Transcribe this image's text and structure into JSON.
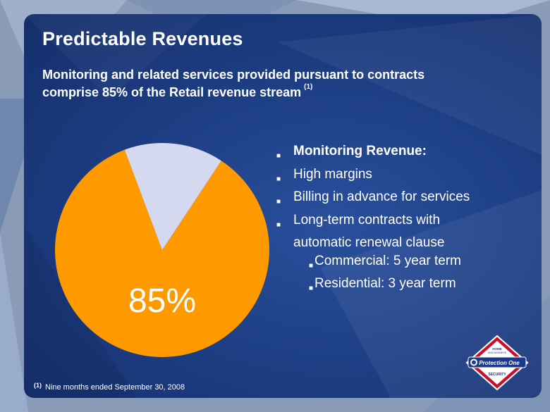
{
  "slide": {
    "title": "Predictable Revenues",
    "subtitle": "Monitoring and related services provided pursuant to contracts comprise 85% of the Retail revenue stream",
    "subtitle_footnote_mark": "(1)",
    "footnote_mark": "(1)",
    "footnote_text": "Nine months ended September 30, 2008"
  },
  "bullets": {
    "items": [
      {
        "label": "Monitoring Revenue:",
        "bold": true
      },
      {
        "label": "High margins"
      },
      {
        "label": "Billing in advance for services"
      },
      {
        "label": "Long-term contracts with"
      },
      {
        "label": "automatic renewal clause"
      },
      {
        "label": "Commercial: 5 year term"
      },
      {
        "label": "Residential: 3 year term"
      }
    ]
  },
  "logo": {
    "top_text": "HOME AND BUSINESS",
    "brand": "Protection One",
    "bottom_text": "SECURITY"
  },
  "chart_data": {
    "type": "pie",
    "slices": [
      {
        "value": 85,
        "color": "#ff9900"
      },
      {
        "value": 15,
        "color": "#d4d9f0"
      }
    ],
    "data_label": "85%"
  },
  "colors": {
    "pie_major": "#ff9900",
    "pie_minor": "#d4d9f0",
    "panel": "#1e3f86",
    "text": "#ffffff"
  }
}
